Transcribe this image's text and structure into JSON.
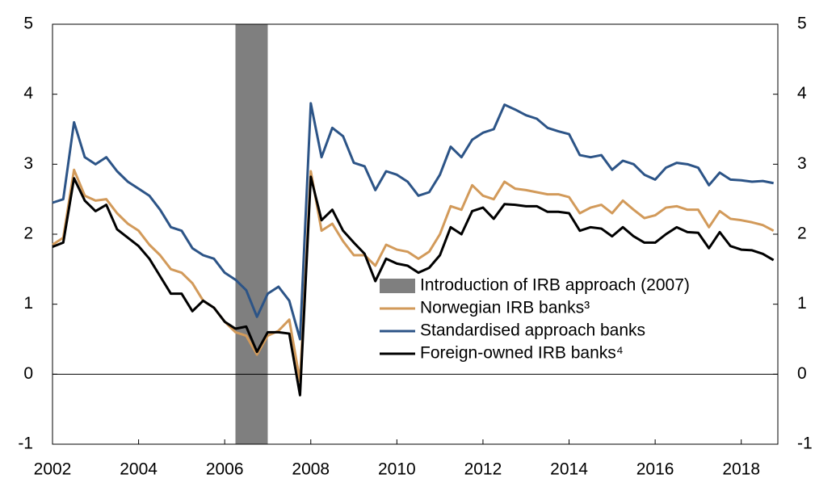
{
  "chart_data": {
    "type": "line",
    "x": [
      2002,
      2002.25,
      2002.5,
      2002.75,
      2003,
      2003.25,
      2003.5,
      2003.75,
      2004,
      2004.25,
      2004.5,
      2004.75,
      2005,
      2005.25,
      2005.5,
      2005.75,
      2006,
      2006.25,
      2006.5,
      2006.75,
      2007,
      2007.25,
      2007.5,
      2007.75,
      2008,
      2008.25,
      2008.5,
      2008.75,
      2009,
      2009.25,
      2009.5,
      2009.75,
      2010,
      2010.25,
      2010.5,
      2010.75,
      2011,
      2011.25,
      2011.5,
      2011.75,
      2012,
      2012.25,
      2012.5,
      2012.75,
      2013,
      2013.25,
      2013.5,
      2013.75,
      2014,
      2014.25,
      2014.5,
      2014.75,
      2015,
      2015.25,
      2015.5,
      2015.75,
      2016,
      2016.25,
      2016.5,
      2016.75,
      2017,
      2017.25,
      2017.5,
      2017.75,
      2018,
      2018.25,
      2018.5,
      2018.75
    ],
    "shade": {
      "name": "Introduction of IRB approach (2007)",
      "color": "#7f7f7f",
      "x": [
        2006.25,
        2007
      ]
    },
    "series": [
      {
        "name": "Norwegian IRB banks³",
        "color": "#d29a5a",
        "values": [
          1.85,
          1.95,
          2.92,
          2.55,
          2.48,
          2.5,
          2.3,
          2.15,
          2.05,
          1.85,
          1.7,
          1.5,
          1.45,
          1.3,
          1.05,
          0.95,
          0.75,
          0.6,
          0.55,
          0.28,
          0.55,
          0.62,
          0.78,
          -0.1,
          2.9,
          2.05,
          2.15,
          1.9,
          1.7,
          1.7,
          1.55,
          1.85,
          1.78,
          1.75,
          1.65,
          1.75,
          2.0,
          2.4,
          2.35,
          2.7,
          2.55,
          2.5,
          2.75,
          2.65,
          2.63,
          2.6,
          2.57,
          2.57,
          2.53,
          2.3,
          2.38,
          2.42,
          2.3,
          2.48,
          2.35,
          2.23,
          2.27,
          2.38,
          2.4,
          2.35,
          2.35,
          2.1,
          2.33,
          2.22,
          2.2,
          2.17,
          2.13,
          2.05
        ]
      },
      {
        "name": "Standardised approach banks",
        "color": "#2c5487",
        "values": [
          2.45,
          2.5,
          3.6,
          3.1,
          3.0,
          3.1,
          2.9,
          2.75,
          2.65,
          2.55,
          2.35,
          2.1,
          2.05,
          1.8,
          1.7,
          1.65,
          1.45,
          1.35,
          1.2,
          0.82,
          1.15,
          1.25,
          1.05,
          0.5,
          3.87,
          3.1,
          3.52,
          3.4,
          3.02,
          2.97,
          2.63,
          2.9,
          2.85,
          2.75,
          2.55,
          2.6,
          2.85,
          3.25,
          3.1,
          3.35,
          3.45,
          3.5,
          3.85,
          3.78,
          3.7,
          3.65,
          3.52,
          3.47,
          3.43,
          3.13,
          3.1,
          3.13,
          2.92,
          3.05,
          3.0,
          2.85,
          2.78,
          2.95,
          3.02,
          3.0,
          2.95,
          2.7,
          2.88,
          2.78,
          2.77,
          2.75,
          2.76,
          2.73
        ]
      },
      {
        "name": "Foreign-owned IRB banks⁴",
        "color": "#000000",
        "values": [
          1.82,
          1.88,
          2.8,
          2.48,
          2.33,
          2.42,
          2.07,
          1.95,
          1.83,
          1.65,
          1.4,
          1.15,
          1.15,
          0.9,
          1.05,
          0.95,
          0.75,
          0.65,
          0.68,
          0.32,
          0.6,
          0.6,
          0.58,
          -0.3,
          2.82,
          2.2,
          2.35,
          2.05,
          1.88,
          1.72,
          1.33,
          1.65,
          1.58,
          1.55,
          1.45,
          1.52,
          1.7,
          2.1,
          2.0,
          2.33,
          2.38,
          2.22,
          2.43,
          2.42,
          2.4,
          2.4,
          2.32,
          2.32,
          2.3,
          2.05,
          2.1,
          2.08,
          1.97,
          2.1,
          1.97,
          1.88,
          1.88,
          2.0,
          2.1,
          2.03,
          2.02,
          1.8,
          2.03,
          1.83,
          1.78,
          1.77,
          1.72,
          1.63
        ]
      }
    ],
    "xlim": [
      2002,
      2018.85
    ],
    "xticks": [
      2002,
      2004,
      2006,
      2008,
      2010,
      2012,
      2014,
      2016,
      2018
    ],
    "ylim": [
      -1,
      5
    ],
    "yticks": [
      -1,
      0,
      1,
      2,
      3,
      4,
      5
    ],
    "y2lim": [
      -1,
      5
    ],
    "y2ticks": [
      -1,
      0,
      1,
      2,
      3,
      4,
      5
    ]
  }
}
